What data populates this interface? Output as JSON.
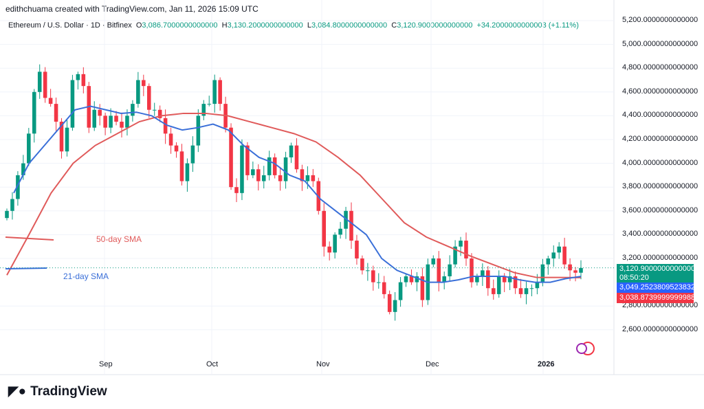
{
  "header": {
    "credit": "edithchuama created with TradingView.com, Jan 11, 2026 15:09 UTC",
    "symbol": "Ethereum / U.S. Dollar · 1D · Bitfinex",
    "o_label": "O",
    "o": "3,086.7000000000000",
    "h_label": "H",
    "h": "3,130.2000000000000",
    "l_label": "L",
    "l": "3,084.8000000000000",
    "c_label": "C",
    "c": "3,120.9000000000000",
    "change": "+34.2000000000003 (+1.11%)"
  },
  "badges": {
    "price": "3,120.9000000000000",
    "countdown": "08:50:20",
    "sma21": "3,049.2523809523832",
    "sma50": "3,038.8739999999988"
  },
  "annotations": {
    "sma50": "50-day SMA",
    "sma21": "21-day SMA"
  },
  "logo": "TradingView",
  "colors": {
    "up": "#089981",
    "down": "#f23645",
    "sma21": "#3a6fd8",
    "sma50": "#e05a5a"
  },
  "chart_data": {
    "type": "candlestick",
    "ylim": [
      2600,
      5200
    ],
    "yticks": [
      "5,200.0000000000000",
      "5,000.0000000000000",
      "4,800.0000000000000",
      "4,600.0000000000000",
      "4,400.0000000000000",
      "4,200.0000000000000",
      "4,000.0000000000000",
      "3,800.0000000000000",
      "3,600.0000000000000",
      "3,400.0000000000000",
      "3,200.0000000000000",
      "2,800.0000000000000",
      "2,600.0000000000000"
    ],
    "ytick_values": [
      5200,
      5000,
      4800,
      4600,
      4400,
      4200,
      4000,
      3800,
      3600,
      3400,
      3200,
      2800,
      2600
    ],
    "xticks": [
      "Sep",
      "Oct",
      "Nov",
      "Dec",
      "2026"
    ],
    "closes": [
      3600,
      3700,
      3900,
      4000,
      4250,
      4600,
      4770,
      4550,
      4500,
      4350,
      4100,
      4300,
      4700,
      4750,
      4650,
      4300,
      4450,
      4400,
      4300,
      4400,
      4350,
      4300,
      4400,
      4500,
      4700,
      4650,
      4450,
      4450,
      4380,
      4250,
      4150,
      4100,
      3850,
      4000,
      4150,
      4400,
      4500,
      4500,
      4700,
      4500,
      4300,
      3800,
      3750,
      4150,
      3900,
      3950,
      3850,
      3900,
      4050,
      3900,
      3850,
      4050,
      4150,
      3950,
      3850,
      3900,
      3850,
      3600,
      3300,
      3250,
      3400,
      3450,
      3600,
      3350,
      3200,
      3100,
      3100,
      3000,
      3000,
      2900,
      2750,
      2850,
      3000,
      3050,
      3000,
      3050,
      2850,
      3150,
      3200,
      3000,
      3050,
      3150,
      3300,
      3350,
      3200,
      3000,
      3050,
      3100,
      2950,
      2900,
      3050,
      3000,
      3050,
      2950,
      2900,
      2950,
      2950,
      3000,
      3150,
      3200,
      3250,
      3300,
      3150,
      3100,
      3080,
      3120
    ],
    "sma21": [
      3750,
      4000,
      4150,
      4300,
      4450,
      4480,
      4450,
      4420,
      4430,
      4400,
      4320,
      4280,
      4300,
      4330,
      4280,
      4150,
      4050,
      4000,
      3900,
      3850,
      3700,
      3600,
      3500,
      3400,
      3200,
      3100,
      3050,
      3000,
      3000,
      3020,
      3050,
      3050,
      3050,
      3020,
      3000,
      3000,
      3030,
      3049
    ],
    "sma50": [
      3060,
      3400,
      3750,
      4000,
      4150,
      4250,
      4350,
      4400,
      4420,
      4420,
      4400,
      4350,
      4300,
      4250,
      4180,
      4050,
      3900,
      3700,
      3500,
      3380,
      3300,
      3220,
      3150,
      3080,
      3040,
      3040,
      3039
    ]
  }
}
